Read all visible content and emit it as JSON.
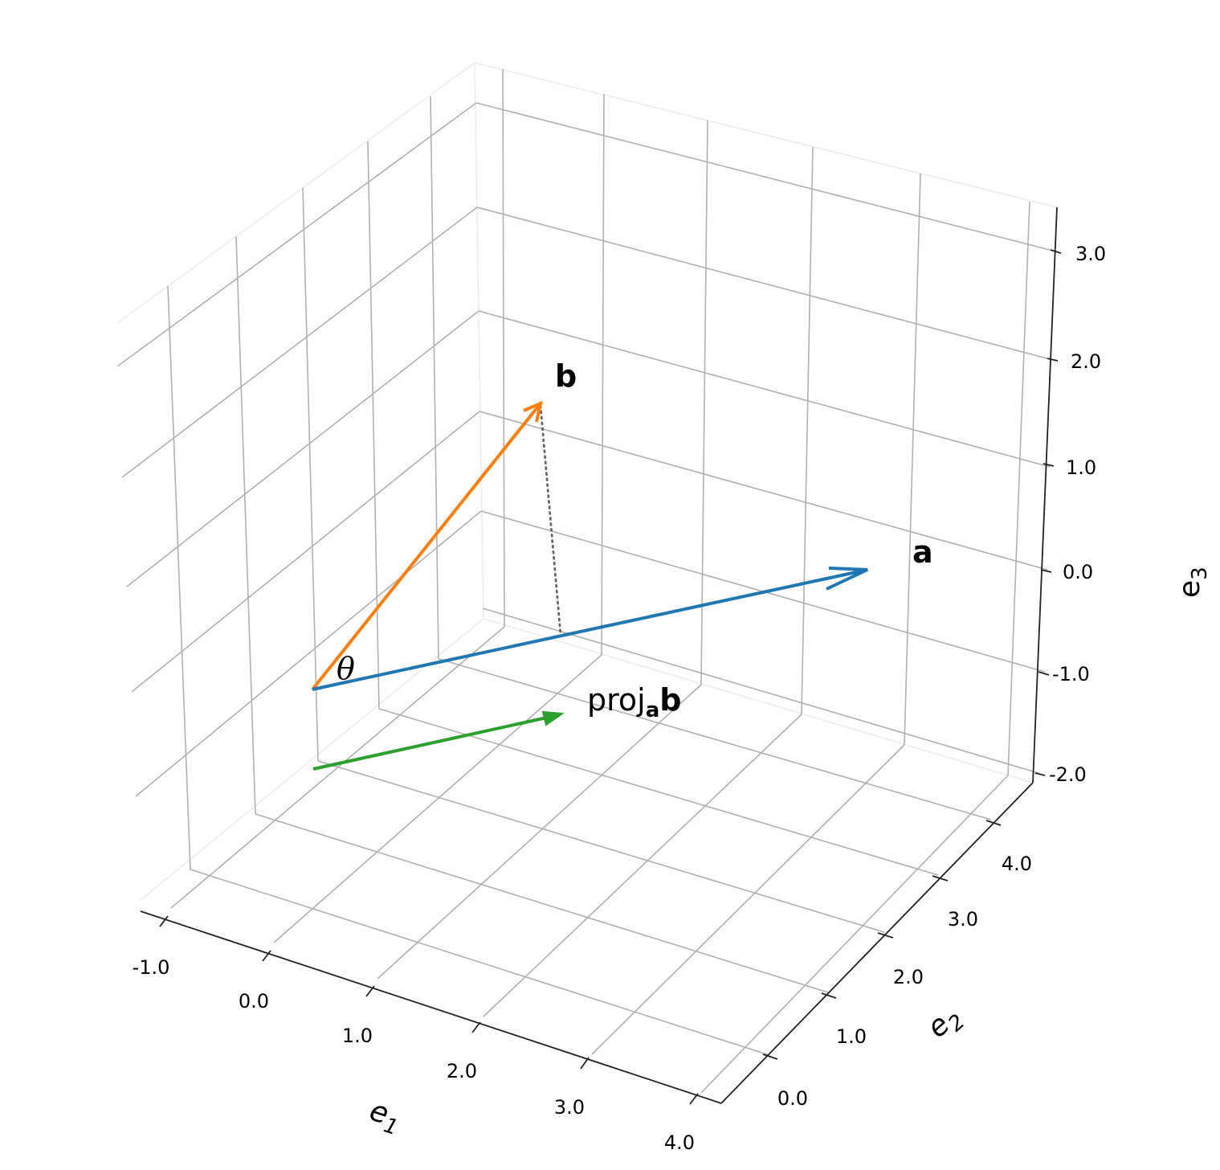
{
  "chart_data": {
    "type": "3d-vectors",
    "axes": {
      "x": {
        "label": "e",
        "label_sub": "1",
        "ticks": [
          "-1.0",
          "0.0",
          "1.0",
          "2.0",
          "3.0",
          "4.0"
        ]
      },
      "y": {
        "label": "e",
        "label_sub": "2",
        "ticks": [
          "0.0",
          "1.0",
          "2.0",
          "3.0",
          "4.0"
        ]
      },
      "z": {
        "label": "e",
        "label_sub": "3",
        "ticks": [
          "-2.0",
          "-1.0",
          "0.0",
          "1.0",
          "2.0",
          "3.0"
        ]
      }
    },
    "vectors": [
      {
        "name": "a",
        "label": "a",
        "color": "#1f77b4",
        "head": "open"
      },
      {
        "name": "b",
        "label": "b",
        "color": "#ff7f0e",
        "head": "open"
      },
      {
        "name": "proj",
        "label_main": "proj",
        "label_sub": "a",
        "label_bold": "b",
        "color": "#2ca02c",
        "head": "filled"
      }
    ],
    "angle_label": "θ",
    "projection_line": {
      "style": "dotted",
      "color": "#666666"
    },
    "grid": true
  }
}
